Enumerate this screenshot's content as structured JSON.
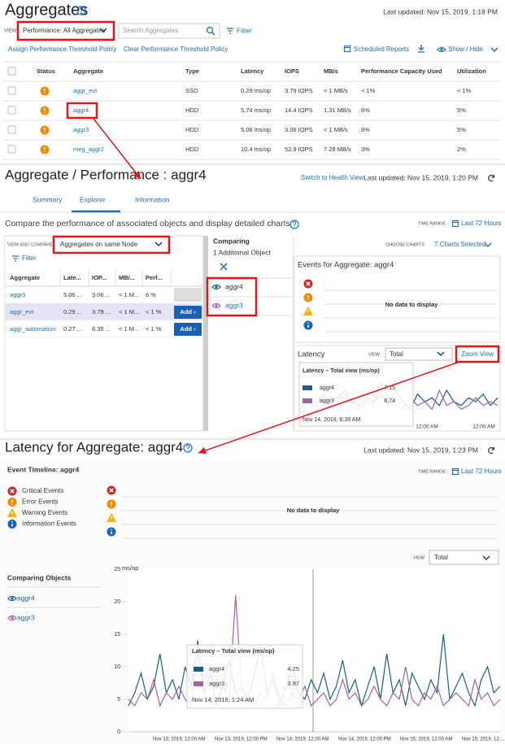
{
  "aggregates_panel": {
    "title": "Aggregates",
    "last_updated": "Last updated: Nov 15, 2019, 1:18 PM",
    "view_label": "VIEW",
    "view_select": "Performance: All Aggregates",
    "search_placeholder": "Search Aggregates",
    "filter": "Filter",
    "actions": [
      "Assign Performance Threshold Policy",
      "Clear Performance Threshold Policy"
    ],
    "toolbar": [
      "Scheduled Reports",
      "Show / Hide"
    ],
    "table": {
      "columns": [
        "Status",
        "Aggregate",
        "Type",
        "Latency",
        "IOPS",
        "MB/s",
        "Performance Capacity Used",
        "Utilization"
      ],
      "rows": [
        [
          "aggr_evt",
          "SSD",
          "0.29 ms/op",
          "3.79 IOPS",
          "< 1 MB/s",
          "< 1%",
          "< 1%"
        ],
        [
          "aggr4",
          "HDD",
          "5.74 ms/op",
          "14.4 IOPS",
          "1.31 MB/s",
          "6%",
          "5%"
        ],
        [
          "aggr3",
          "HDD",
          "5.06 ms/op",
          "3.06 IOPS",
          "< 1 MB/s",
          "6%",
          "5%"
        ],
        [
          "meg_aggr2",
          "HDD",
          "10.4 ms/op",
          "52.9 IOPS",
          "7.28 MB/s",
          "3%",
          "2%"
        ]
      ]
    }
  },
  "performance_panel": {
    "title": "Aggregate / Performance : aggr4",
    "switch_link": "Switch to Health View",
    "last_updated": "Last updated: Nov 15, 2019, 1:20 PM",
    "tabs": [
      "Summary",
      "Explorer",
      "Information"
    ],
    "compare_text": "Compare the performance of associated objects and display detailed charts",
    "time_range_label": "TIME RANGE",
    "time_range": "Last 72 Hours",
    "view_compare_label": "VIEW AND COMPARE",
    "view_compare_select": "Aggregates on same Node",
    "filter": "Filter",
    "table": {
      "columns": [
        "Aggregate",
        "Late...",
        "IOP...",
        "MB/...",
        "Perf..."
      ],
      "rows": [
        [
          "aggr3",
          "5.06 ...",
          "3.06 ...",
          "< 1 M...",
          "6 %"
        ],
        [
          "aggr_evt",
          "0.29 ...",
          "3.79 ...",
          "< 1 M...",
          "< 1 %"
        ],
        [
          "aggr_automation",
          "0.27 ...",
          "6.35 ...",
          "< 1 M...",
          "< 1 %"
        ]
      ]
    },
    "add_button": "Add ›",
    "comparing_title": "Comparing",
    "comparing_subtitle": "1 Additional Object",
    "comparing_objects": [
      "aggr4",
      "aggr3"
    ],
    "choose_charts": "CHOOSE CHARTS",
    "charts_selected": "7 Charts Selected",
    "events_title": "Events for Aggregate: aggr4",
    "events_empty": "No data to display",
    "latency": {
      "title": "Latency",
      "view_label": "VIEW",
      "view_select": "Total",
      "zoom": "Zoom View",
      "ylim": [
        0,
        15
      ],
      "xticks": [
        "12:00 AM",
        "12:00 AM"
      ],
      "series": [
        {
          "name": "aggr4",
          "color": "#1b5e87",
          "values": [
            6,
            7,
            5,
            8,
            6,
            7,
            9,
            6,
            5,
            7,
            6,
            8,
            5,
            9,
            6,
            4,
            8,
            6,
            7,
            5,
            9,
            6,
            5,
            7,
            6,
            8,
            5,
            7
          ]
        },
        {
          "name": "aggr3",
          "color": "#a0649c",
          "values": [
            5,
            6,
            4,
            7,
            5,
            6,
            8,
            5,
            4,
            6,
            5,
            11,
            6,
            5,
            4,
            7,
            5,
            6,
            4,
            9,
            5,
            6,
            4,
            5,
            7,
            5,
            6,
            5
          ]
        }
      ],
      "tooltip": {
        "title": "Latency – Total view (ms/op)",
        "rows": [
          {
            "name": "aggr4",
            "value": 7.15
          },
          {
            "name": "aggr3",
            "value": 6.74
          }
        ],
        "time": "Nov 14, 2019, 6:39 AM"
      }
    }
  },
  "latency_panel": {
    "title": "Latency for Aggregate: aggr4",
    "last_updated": "Last updated: Nov 15, 2019, 1:23 PM",
    "event_timeline": "Event Timeline: aggr4",
    "time_range_label": "TIME RANGE",
    "time_range": "Last 72 Hours",
    "event_legend": [
      "Critical Events",
      "Error Events",
      "Warning Events",
      "Information Events"
    ],
    "events_empty": "No data to display",
    "view_label": "VIEW",
    "view_select": "Total",
    "comparing_title": "Comparing Objects",
    "comparing_objects": [
      "aggr4",
      "aggr3"
    ],
    "chart_data": {
      "type": "line",
      "y_label": "ms/op",
      "ylim": [
        0,
        25
      ],
      "yticks": [
        0,
        5,
        10,
        15,
        20,
        25
      ],
      "xticks": [
        "Nov 13, 2019, 12:00 AM",
        "Nov 13, 2019, 12:00 PM",
        "Nov 14, 2019, 12:00 AM",
        "Nov 14, 2019, 12:00 PM",
        "Nov 15, 2019, 12:00 AM",
        "Nov 15, 2019, 12:..."
      ],
      "series": [
        {
          "name": "aggr4",
          "color": "#1b5e87",
          "values": [
            4,
            6,
            9,
            5,
            7,
            12,
            6,
            8,
            5,
            10,
            7,
            14,
            6,
            9,
            4,
            8,
            11,
            6,
            7,
            5,
            9,
            13,
            6,
            8,
            4,
            7,
            10,
            6,
            5,
            8,
            6,
            9,
            5,
            7,
            11,
            6,
            8,
            4,
            7,
            10,
            5,
            12,
            6,
            8,
            4,
            9,
            7,
            5,
            8,
            6,
            15,
            5,
            7,
            9,
            6,
            4,
            8,
            10,
            6,
            7
          ]
        },
        {
          "name": "aggr3",
          "color": "#a0649c",
          "values": [
            5,
            4,
            6,
            5,
            8,
            4,
            6,
            5,
            7,
            5,
            4,
            12,
            6,
            5,
            4,
            7,
            5,
            21,
            6,
            5,
            4,
            6,
            5,
            9,
            5,
            4,
            6,
            5,
            7,
            4,
            5,
            6,
            4,
            5,
            8,
            5,
            6,
            4,
            5,
            7,
            5,
            4,
            6,
            5,
            10,
            5,
            4,
            6,
            5,
            7,
            4,
            5,
            6,
            5,
            4,
            8,
            5,
            6,
            4,
            5
          ]
        }
      ],
      "tooltip": {
        "title": "Latency – Total view (ms/op)",
        "rows": [
          {
            "name": "aggr4",
            "value": 4.25
          },
          {
            "name": "aggr3",
            "value": 3.97
          }
        ],
        "time": "Nov 14, 2019, 1:24 AM"
      }
    }
  }
}
